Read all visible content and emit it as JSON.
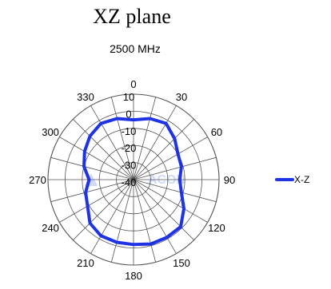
{
  "heading": "XZ plane",
  "chart_data": {
    "type": "radar",
    "title": "2500 MHz",
    "angle_unit": "degrees",
    "angle_zero": "top",
    "angle_direction": "clockwise",
    "angle_ticks": [
      0,
      30,
      60,
      90,
      120,
      150,
      180,
      210,
      240,
      270,
      300,
      330
    ],
    "angle_tick_labels": [
      "0",
      "30",
      "60",
      "90",
      "120",
      "150",
      "180",
      "210",
      "240",
      "270",
      "300",
      "330"
    ],
    "radial_ticks": [
      10,
      0,
      -10,
      -20,
      -30,
      -40
    ],
    "radial_tick_labels": [
      "10",
      "0",
      "-10",
      "-20",
      "-30",
      "-40"
    ],
    "rlim": [
      -40,
      10
    ],
    "spokes_every_deg": 15,
    "grid": true,
    "legend_position": "right",
    "series": [
      {
        "name": "X-Z",
        "color": "#1f33e6",
        "angles": [
          0,
          15,
          30,
          45,
          60,
          75,
          90,
          105,
          120,
          135,
          150,
          165,
          180,
          195,
          210,
          225,
          240,
          255,
          270,
          285,
          300,
          315,
          330,
          345
        ],
        "values": [
          -5,
          -3,
          -2,
          -6,
          -10,
          -11,
          -13,
          -11,
          -6,
          -1,
          -1,
          -1,
          -2,
          -2,
          -2,
          -4,
          -9,
          -11,
          -14,
          -10,
          -7,
          -4,
          -2,
          -3
        ]
      }
    ]
  },
  "watermark": "ACON"
}
